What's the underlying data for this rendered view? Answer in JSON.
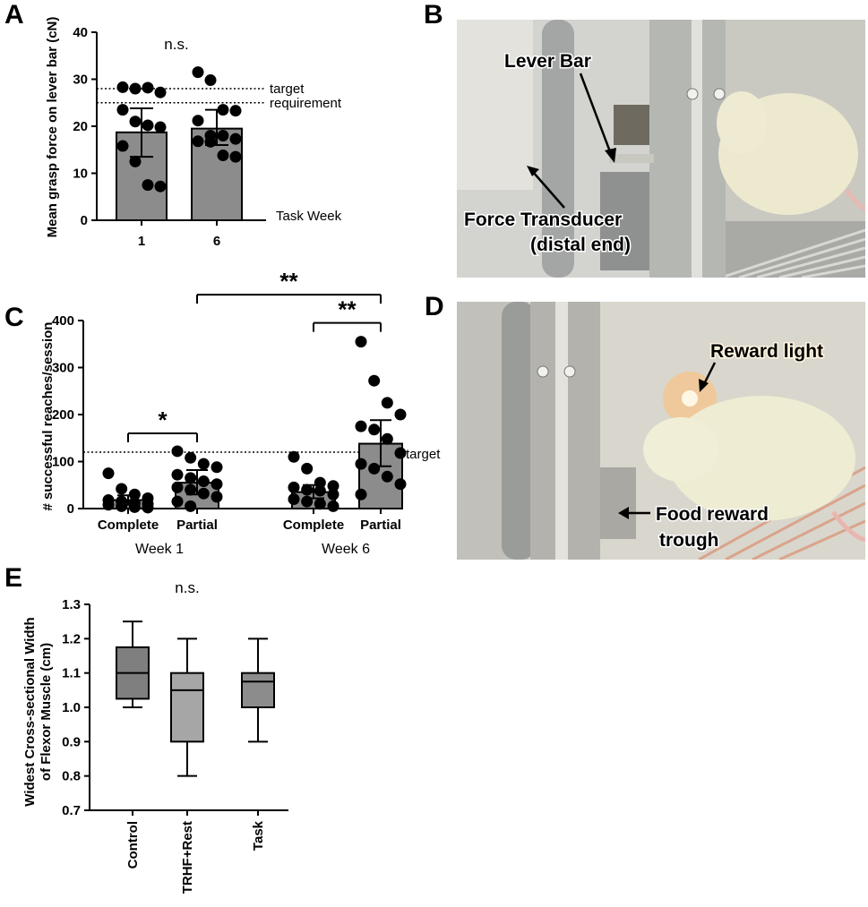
{
  "panel_letters": {
    "a": "A",
    "b": "B",
    "c": "C",
    "d": "D",
    "e": "E"
  },
  "photo_b": {
    "labels": {
      "lever_bar": "Lever Bar",
      "force_transducer": "Force Transducer",
      "distal_end": "(distal end)"
    },
    "colors": {
      "rat": "#ece9cf",
      "cage": "#b9bbb7",
      "metal": "#8e9190",
      "background": "#d3d4cf"
    }
  },
  "photo_d": {
    "labels": {
      "reward_light": "Reward light",
      "food_reward": "Food reward",
      "trough": "trough"
    },
    "colors": {
      "rat": "#eeecd2",
      "light": "#f6c48a",
      "cage": "#b3b2ad",
      "background": "#d9d6cd"
    }
  },
  "chart_data": [
    {
      "id": "A",
      "type": "scatter",
      "ylabel": "Mean grasp force on lever bar (cN)",
      "ylim": [
        0,
        40
      ],
      "yticks": [
        "0",
        "10",
        "20",
        "30",
        "40"
      ],
      "categories": [
        "1",
        "6"
      ],
      "bars": [
        {
          "category": "1",
          "mean": 18.7,
          "sd_low": 13.5,
          "sd_high": 23.8
        },
        {
          "category": "6",
          "mean": 19.5,
          "sd_low": 16.0,
          "sd_high": 23.5
        }
      ],
      "points": [
        {
          "category": "1",
          "values": [
            28.3,
            28.0,
            28.2,
            27.2,
            23.5,
            21.0,
            20.2,
            19.8,
            15.8,
            12.5,
            7.5,
            7.2
          ]
        },
        {
          "category": "6",
          "values": [
            31.5,
            29.8,
            23.5,
            23.3,
            21.2,
            18.0,
            18.0,
            17.3,
            16.8,
            16.7,
            13.8,
            13.5
          ]
        }
      ],
      "reference_lines": [
        {
          "value": 28,
          "label": "target"
        },
        {
          "value": 25,
          "label": "requirement"
        }
      ],
      "annotation": "n.s.",
      "xaxis_note": "Task Week"
    },
    {
      "id": "C",
      "type": "scatter",
      "ylabel": "# successful reaches/session",
      "ylim": [
        0,
        400
      ],
      "yticks": [
        "0",
        "100",
        "200",
        "300",
        "400"
      ],
      "categories": [
        "Complete",
        "Partial",
        "Complete",
        "Partial"
      ],
      "groups": [
        "Week 1",
        "Week 6"
      ],
      "bars": [
        {
          "category": "Complete",
          "group": "Week 1",
          "mean": 18,
          "sd_low": 8,
          "sd_high": 28
        },
        {
          "category": "Partial",
          "group": "Week 1",
          "mean": 55,
          "sd_low": 30,
          "sd_high": 82
        },
        {
          "category": "Complete",
          "group": "Week 6",
          "mean": 35,
          "sd_low": 22,
          "sd_high": 50
        },
        {
          "category": "Partial",
          "group": "Week 6",
          "mean": 138,
          "sd_low": 90,
          "sd_high": 188
        }
      ],
      "points": [
        {
          "category": "Complete",
          "group": "Week 1",
          "values": [
            75,
            42,
            30,
            22,
            18,
            15,
            12,
            10,
            8,
            5,
            3,
            2
          ]
        },
        {
          "category": "Partial",
          "group": "Week 1",
          "values": [
            122,
            108,
            95,
            88,
            72,
            65,
            58,
            52,
            45,
            40,
            32,
            25,
            15,
            5
          ]
        },
        {
          "category": "Complete",
          "group": "Week 6",
          "values": [
            110,
            85,
            55,
            48,
            45,
            40,
            38,
            30,
            20,
            15,
            10,
            5
          ]
        },
        {
          "category": "Partial",
          "group": "Week 6",
          "values": [
            355,
            272,
            225,
            200,
            175,
            168,
            148,
            118,
            95,
            85,
            68,
            52,
            30
          ]
        }
      ],
      "reference_lines": [
        {
          "value": 120,
          "label": "target"
        }
      ],
      "significance": [
        {
          "label": "*",
          "from": 0,
          "to": 1,
          "level": 160
        },
        {
          "label": "**",
          "from": 2,
          "to": 3,
          "level": 395
        },
        {
          "label": "**",
          "from": 1,
          "to": 3,
          "level": 455
        }
      ]
    },
    {
      "id": "E",
      "type": "box",
      "ylabel_line1": "Widest Cross-sectional Width",
      "ylabel_line2": "of Flexor Muscle (cm)",
      "ylim": [
        0.7,
        1.3
      ],
      "yticks": [
        "0.7",
        "0.8",
        "0.9",
        "1.0",
        "1.1",
        "1.2",
        "1.3"
      ],
      "categories": [
        "Control",
        "TRHF+Rest",
        "Task"
      ],
      "boxes": [
        {
          "category": "Control",
          "min": 1.0,
          "q1": 1.025,
          "median": 1.1,
          "q3": 1.175,
          "max": 1.25,
          "color": "#7f7f7f"
        },
        {
          "category": "TRHF+Rest",
          "min": 0.8,
          "q1": 0.9,
          "median": 1.05,
          "q3": 1.1,
          "max": 1.2,
          "color": "#a6a6a6"
        },
        {
          "category": "Task",
          "min": 0.9,
          "q1": 1.0,
          "median": 1.075,
          "q3": 1.1,
          "max": 1.2,
          "color": "#8c8c8c"
        }
      ],
      "annotation": "n.s."
    }
  ]
}
